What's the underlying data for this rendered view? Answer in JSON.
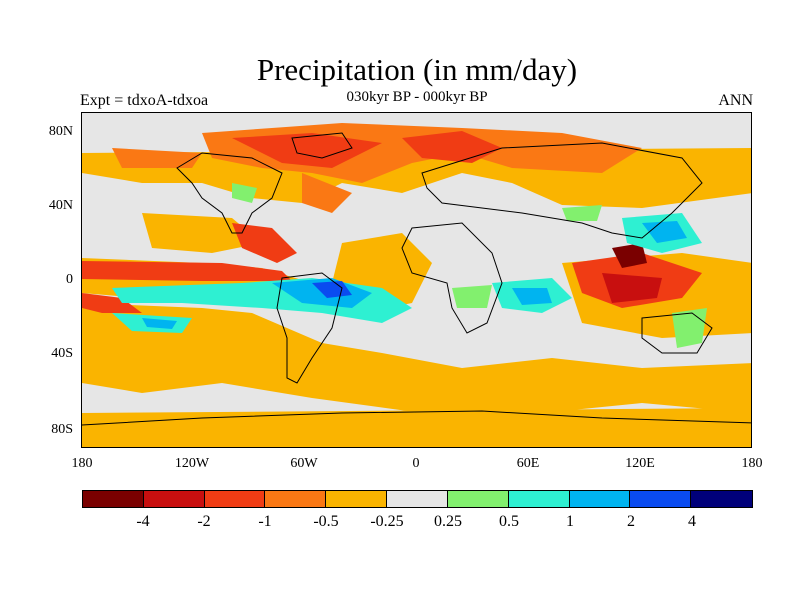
{
  "title": "Precipitation (in mm/day)",
  "subtitle": "030kyr BP - 000kyr BP",
  "left_string": "Expt = tdxoA-tdxoa",
  "right_string": "ANN",
  "axes": {
    "y_ticks": [
      "80N",
      "40N",
      "0",
      "40S",
      "80S"
    ],
    "x_ticks": [
      "180",
      "120W",
      "60W",
      "0",
      "60E",
      "120E",
      "180"
    ]
  },
  "colorbar": {
    "colors": [
      "#7a0000",
      "#c80f0f",
      "#f03c14",
      "#fa7814",
      "#fab400",
      "#e6e6e6",
      "#82f06e",
      "#2ef0d2",
      "#00b4f0",
      "#0a4bf0",
      "#00007a"
    ],
    "labels": [
      "-4",
      "-2",
      "-1",
      "-0.5",
      "-0.25",
      "0.25",
      "0.5",
      "1",
      "2",
      "4"
    ]
  }
}
